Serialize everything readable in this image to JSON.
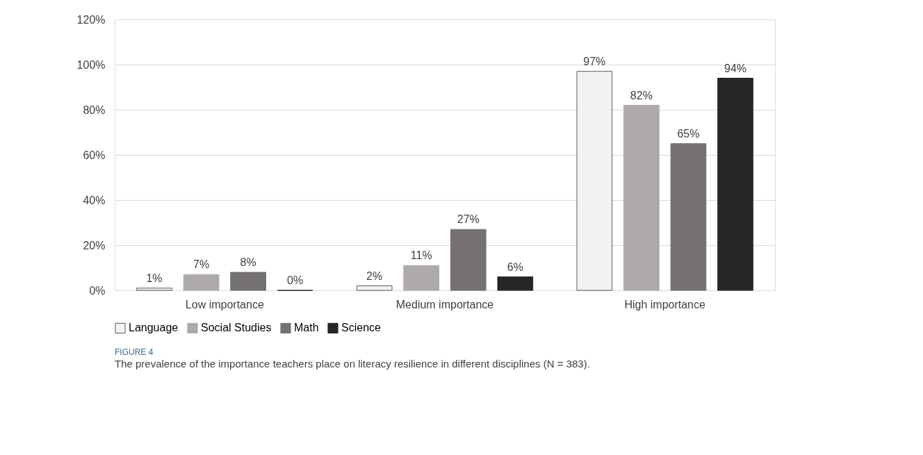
{
  "chart_data": {
    "type": "bar",
    "categories": [
      "Low importance",
      "Medium importance",
      "High importance"
    ],
    "series": [
      {
        "name": "Language",
        "color": "#f2f2f2",
        "values": [
          1,
          2,
          97
        ],
        "value_labels": [
          "1%",
          "2%",
          "97%"
        ]
      },
      {
        "name": "Social Studies",
        "color": "#aeaaaa",
        "values": [
          7,
          11,
          82
        ],
        "value_labels": [
          "7%",
          "11%",
          "82%"
        ]
      },
      {
        "name": "Math",
        "color": "#767171",
        "values": [
          8,
          27,
          65
        ],
        "value_labels": [
          "8%",
          "27%",
          "65%"
        ]
      },
      {
        "name": "Science",
        "color": "#262626",
        "values": [
          0,
          6,
          94
        ],
        "value_labels": [
          "0%",
          "6%",
          "94%"
        ]
      }
    ],
    "ylim": [
      0,
      120
    ],
    "yticks": [
      {
        "value": 0,
        "label": "0%"
      },
      {
        "value": 20,
        "label": "20%"
      },
      {
        "value": 40,
        "label": "40%"
      },
      {
        "value": 60,
        "label": "60%"
      },
      {
        "value": 80,
        "label": "80%"
      },
      {
        "value": 100,
        "label": "100%"
      },
      {
        "value": 120,
        "label": "120%"
      }
    ],
    "grid": "y",
    "legend": "bottom",
    "annotations": [
      "FIGURE 4",
      "The prevalence of the importance teachers place on literacy resilience in different disciplines (N = 383)."
    ]
  }
}
